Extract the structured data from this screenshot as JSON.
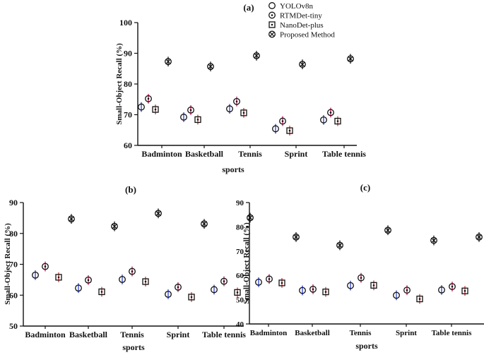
{
  "chart_data": [
    {
      "type": "scatter",
      "panel_label": "(a)",
      "categories": [
        "Badminton",
        "Basketball",
        "Tennis",
        "Sprint",
        "Table tennis"
      ],
      "xlabel": "sports",
      "ylabel": "Small-Object Recall (%)",
      "ylim": [
        60,
        100
      ],
      "yticks": [
        "60",
        "70",
        "80",
        "90",
        "100"
      ],
      "error_bars": true,
      "legend_position": "top-right",
      "series": [
        {
          "name": "YOLOv8n",
          "marker": "circle",
          "color": "#2b3fd6",
          "values": [
            72.5,
            69.2,
            71.9,
            65.4,
            68.3
          ]
        },
        {
          "name": "RTMDet-tiny",
          "marker": "circle-dot",
          "color": "#c2185b",
          "values": [
            75.2,
            71.5,
            74.3,
            67.9,
            70.7
          ]
        },
        {
          "name": "NanoDet-plus",
          "marker": "square-dot",
          "color": "#d32f2f",
          "values": [
            71.7,
            68.4,
            70.6,
            64.8,
            67.9
          ]
        },
        {
          "name": "Proposed Method",
          "marker": "circle-x",
          "color": "#1a1a1a",
          "values": [
            87.3,
            85.7,
            89.2,
            86.4,
            88.2
          ]
        }
      ]
    },
    {
      "type": "scatter",
      "panel_label": "(b)",
      "categories": [
        "Badminton",
        "Basketball",
        "Tennis",
        "Sprint",
        "Table tennis"
      ],
      "xlabel": "sports",
      "ylabel": "Small-Object Recall (%)",
      "ylim": [
        50,
        90
      ],
      "yticks": [
        "50",
        "60",
        "70",
        "80",
        "90"
      ],
      "error_bars": true,
      "series": [
        {
          "name": "YOLOv8n",
          "marker": "circle",
          "color": "#2b3fd6",
          "values": [
            66.5,
            62.3,
            65.1,
            60.3,
            61.8
          ]
        },
        {
          "name": "RTMDet-tiny",
          "marker": "circle-dot",
          "color": "#c2185b",
          "values": [
            69.3,
            64.9,
            67.7,
            62.6,
            64.5
          ]
        },
        {
          "name": "NanoDet-plus",
          "marker": "square-dot",
          "color": "#d32f2f",
          "values": [
            65.8,
            61.1,
            64.4,
            59.4,
            60.9
          ]
        },
        {
          "name": "Proposed Method",
          "marker": "circle-x",
          "color": "#1a1a1a",
          "values": [
            84.7,
            82.3,
            86.5,
            83.1,
            85.1
          ]
        }
      ]
    },
    {
      "type": "scatter",
      "panel_label": "(c)",
      "categories": [
        "Badminton",
        "Basketball",
        "Tennis",
        "Sprint",
        "Table tennis"
      ],
      "xlabel": "sports",
      "ylabel": "Small-Object Recall (%)",
      "ylim": [
        40,
        90
      ],
      "yticks": [
        "40",
        "50",
        "60",
        "70",
        "80",
        "90"
      ],
      "error_bars": true,
      "series": [
        {
          "name": "YOLOv8n",
          "marker": "circle",
          "color": "#2b3fd6",
          "values": [
            57.2,
            53.8,
            55.8,
            51.8,
            54.0
          ]
        },
        {
          "name": "RTMDet-tiny",
          "marker": "circle-dot",
          "color": "#c2185b",
          "values": [
            58.5,
            54.3,
            59.0,
            53.9,
            55.4
          ]
        },
        {
          "name": "NanoDet-plus",
          "marker": "square-dot",
          "color": "#d32f2f",
          "values": [
            56.9,
            53.2,
            55.9,
            50.3,
            53.6
          ]
        },
        {
          "name": "Proposed Method",
          "marker": "circle-x",
          "color": "#1a1a1a",
          "values": [
            75.8,
            72.4,
            78.6,
            74.4,
            75.8
          ]
        }
      ]
    }
  ]
}
